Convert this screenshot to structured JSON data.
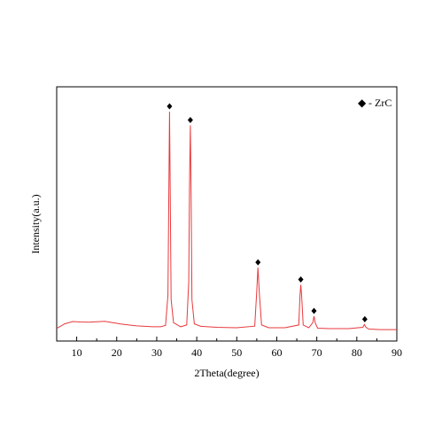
{
  "chart_data": {
    "type": "line",
    "title": "",
    "xlabel": "2Theta(degree)",
    "ylabel": "Intensity(a.u.)",
    "xlim": [
      5,
      90
    ],
    "ylim": [
      0,
      1000
    ],
    "x_ticks": [
      10,
      20,
      30,
      40,
      50,
      60,
      70,
      80,
      90
    ],
    "y_ticks_shown": false,
    "grid": false,
    "line_color": "#e8393c",
    "marker_color": "#000000",
    "legend": {
      "marker": "◆",
      "label": "- ZrC",
      "placement": "top-right"
    },
    "series": [
      {
        "values": {
          "points": [
            [
              5,
              55
            ],
            [
              7,
              75
            ],
            [
              9,
              85
            ],
            [
              11,
              83
            ],
            [
              13,
              82
            ],
            [
              15,
              84
            ],
            [
              17,
              86
            ],
            [
              19,
              80
            ],
            [
              21,
              74
            ],
            [
              23,
              70
            ],
            [
              25,
              66
            ],
            [
              27,
              64
            ],
            [
              29,
              62
            ],
            [
              31,
              62
            ],
            [
              32.2,
              68
            ],
            [
              32.8,
              200
            ],
            [
              33.0,
              600
            ],
            [
              33.2,
              1000
            ],
            [
              33.4,
              600
            ],
            [
              33.6,
              180
            ],
            [
              34.2,
              80
            ],
            [
              36,
              62
            ],
            [
              37.5,
              70
            ],
            [
              38.0,
              260
            ],
            [
              38.2,
              700
            ],
            [
              38.4,
              940
            ],
            [
              38.6,
              620
            ],
            [
              38.8,
              180
            ],
            [
              39.4,
              75
            ],
            [
              41,
              64
            ],
            [
              45,
              60
            ],
            [
              50,
              58
            ],
            [
              54.5,
              65
            ],
            [
              55.0,
              220
            ],
            [
              55.3,
              320
            ],
            [
              55.6,
              220
            ],
            [
              56.2,
              70
            ],
            [
              58,
              58
            ],
            [
              62,
              58
            ],
            [
              65.5,
              70
            ],
            [
              65.8,
              200
            ],
            [
              66.0,
              245
            ],
            [
              66.2,
              200
            ],
            [
              66.6,
              70
            ],
            [
              68,
              58
            ],
            [
              69.0,
              80
            ],
            [
              69.3,
              108
            ],
            [
              69.6,
              80
            ],
            [
              70.2,
              56
            ],
            [
              73,
              54
            ],
            [
              78,
              54
            ],
            [
              81.5,
              60
            ],
            [
              81.9,
              72
            ],
            [
              82.3,
              60
            ],
            [
              83,
              52
            ],
            [
              86,
              50
            ],
            [
              90,
              50
            ]
          ]
        }
      }
    ],
    "peak_markers": [
      {
        "x": 33.2,
        "y": 1000
      },
      {
        "x": 38.4,
        "y": 940
      },
      {
        "x": 55.3,
        "y": 320
      },
      {
        "x": 66.0,
        "y": 245
      },
      {
        "x": 69.3,
        "y": 108
      },
      {
        "x": 82.0,
        "y": 72
      }
    ]
  }
}
